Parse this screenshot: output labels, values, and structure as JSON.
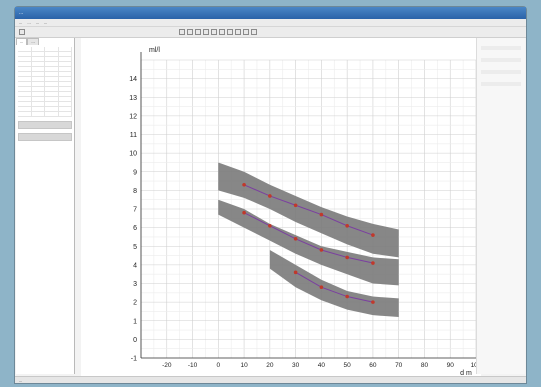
{
  "window": {
    "title": "...",
    "menu": [
      "...",
      "...",
      "...",
      "..."
    ]
  },
  "left_panel": {
    "tabs": [
      "...",
      "..."
    ],
    "rows": 14
  },
  "chart_data": {
    "type": "area",
    "ylabel": "ml/l",
    "xlabel": "d m",
    "xlim": [
      -30,
      100
    ],
    "ylim": [
      -1,
      15
    ],
    "x_ticks": [
      -20,
      -10,
      0,
      10,
      20,
      30,
      40,
      50,
      60,
      70,
      80,
      90,
      100
    ],
    "y_ticks": [
      -1,
      0,
      1,
      2,
      3,
      4,
      5,
      6,
      7,
      8,
      9,
      10,
      11,
      12,
      13,
      14
    ],
    "grid": true,
    "bands": [
      {
        "x": [
          0,
          10,
          20,
          30,
          40,
          50,
          60,
          70
        ],
        "upper": [
          9.5,
          9.0,
          8.3,
          7.7,
          7.1,
          6.6,
          6.2,
          5.9
        ],
        "lower": [
          8.0,
          7.6,
          7.0,
          6.3,
          5.7,
          5.1,
          4.6,
          4.4
        ]
      },
      {
        "x": [
          0,
          10,
          20,
          30,
          40,
          50,
          60,
          70
        ],
        "upper": [
          7.5,
          7.0,
          6.2,
          5.6,
          5.0,
          4.7,
          4.4,
          4.3
        ],
        "lower": [
          6.7,
          6.0,
          5.3,
          4.6,
          4.0,
          3.5,
          3.0,
          2.9
        ]
      },
      {
        "x": [
          20,
          30,
          40,
          50,
          60,
          70
        ],
        "upper": [
          4.8,
          4.0,
          3.2,
          2.6,
          2.3,
          2.2
        ],
        "lower": [
          3.8,
          2.8,
          2.1,
          1.6,
          1.3,
          1.2
        ]
      }
    ],
    "series": [
      {
        "x": [
          10,
          20,
          30,
          40,
          50,
          60
        ],
        "values": [
          8.3,
          7.7,
          7.2,
          6.7,
          6.1,
          5.6
        ]
      },
      {
        "x": [
          10,
          20,
          30,
          40,
          50,
          60
        ],
        "values": [
          6.8,
          6.1,
          5.4,
          4.8,
          4.4,
          4.1
        ]
      },
      {
        "x": [
          30,
          40,
          50,
          60
        ],
        "values": [
          3.6,
          2.8,
          2.3,
          2.0
        ]
      }
    ],
    "colors": {
      "band": "#7a7a7a",
      "line": "#7b3fa0",
      "point": "#c0392b"
    }
  },
  "status": {
    "text": "..."
  }
}
